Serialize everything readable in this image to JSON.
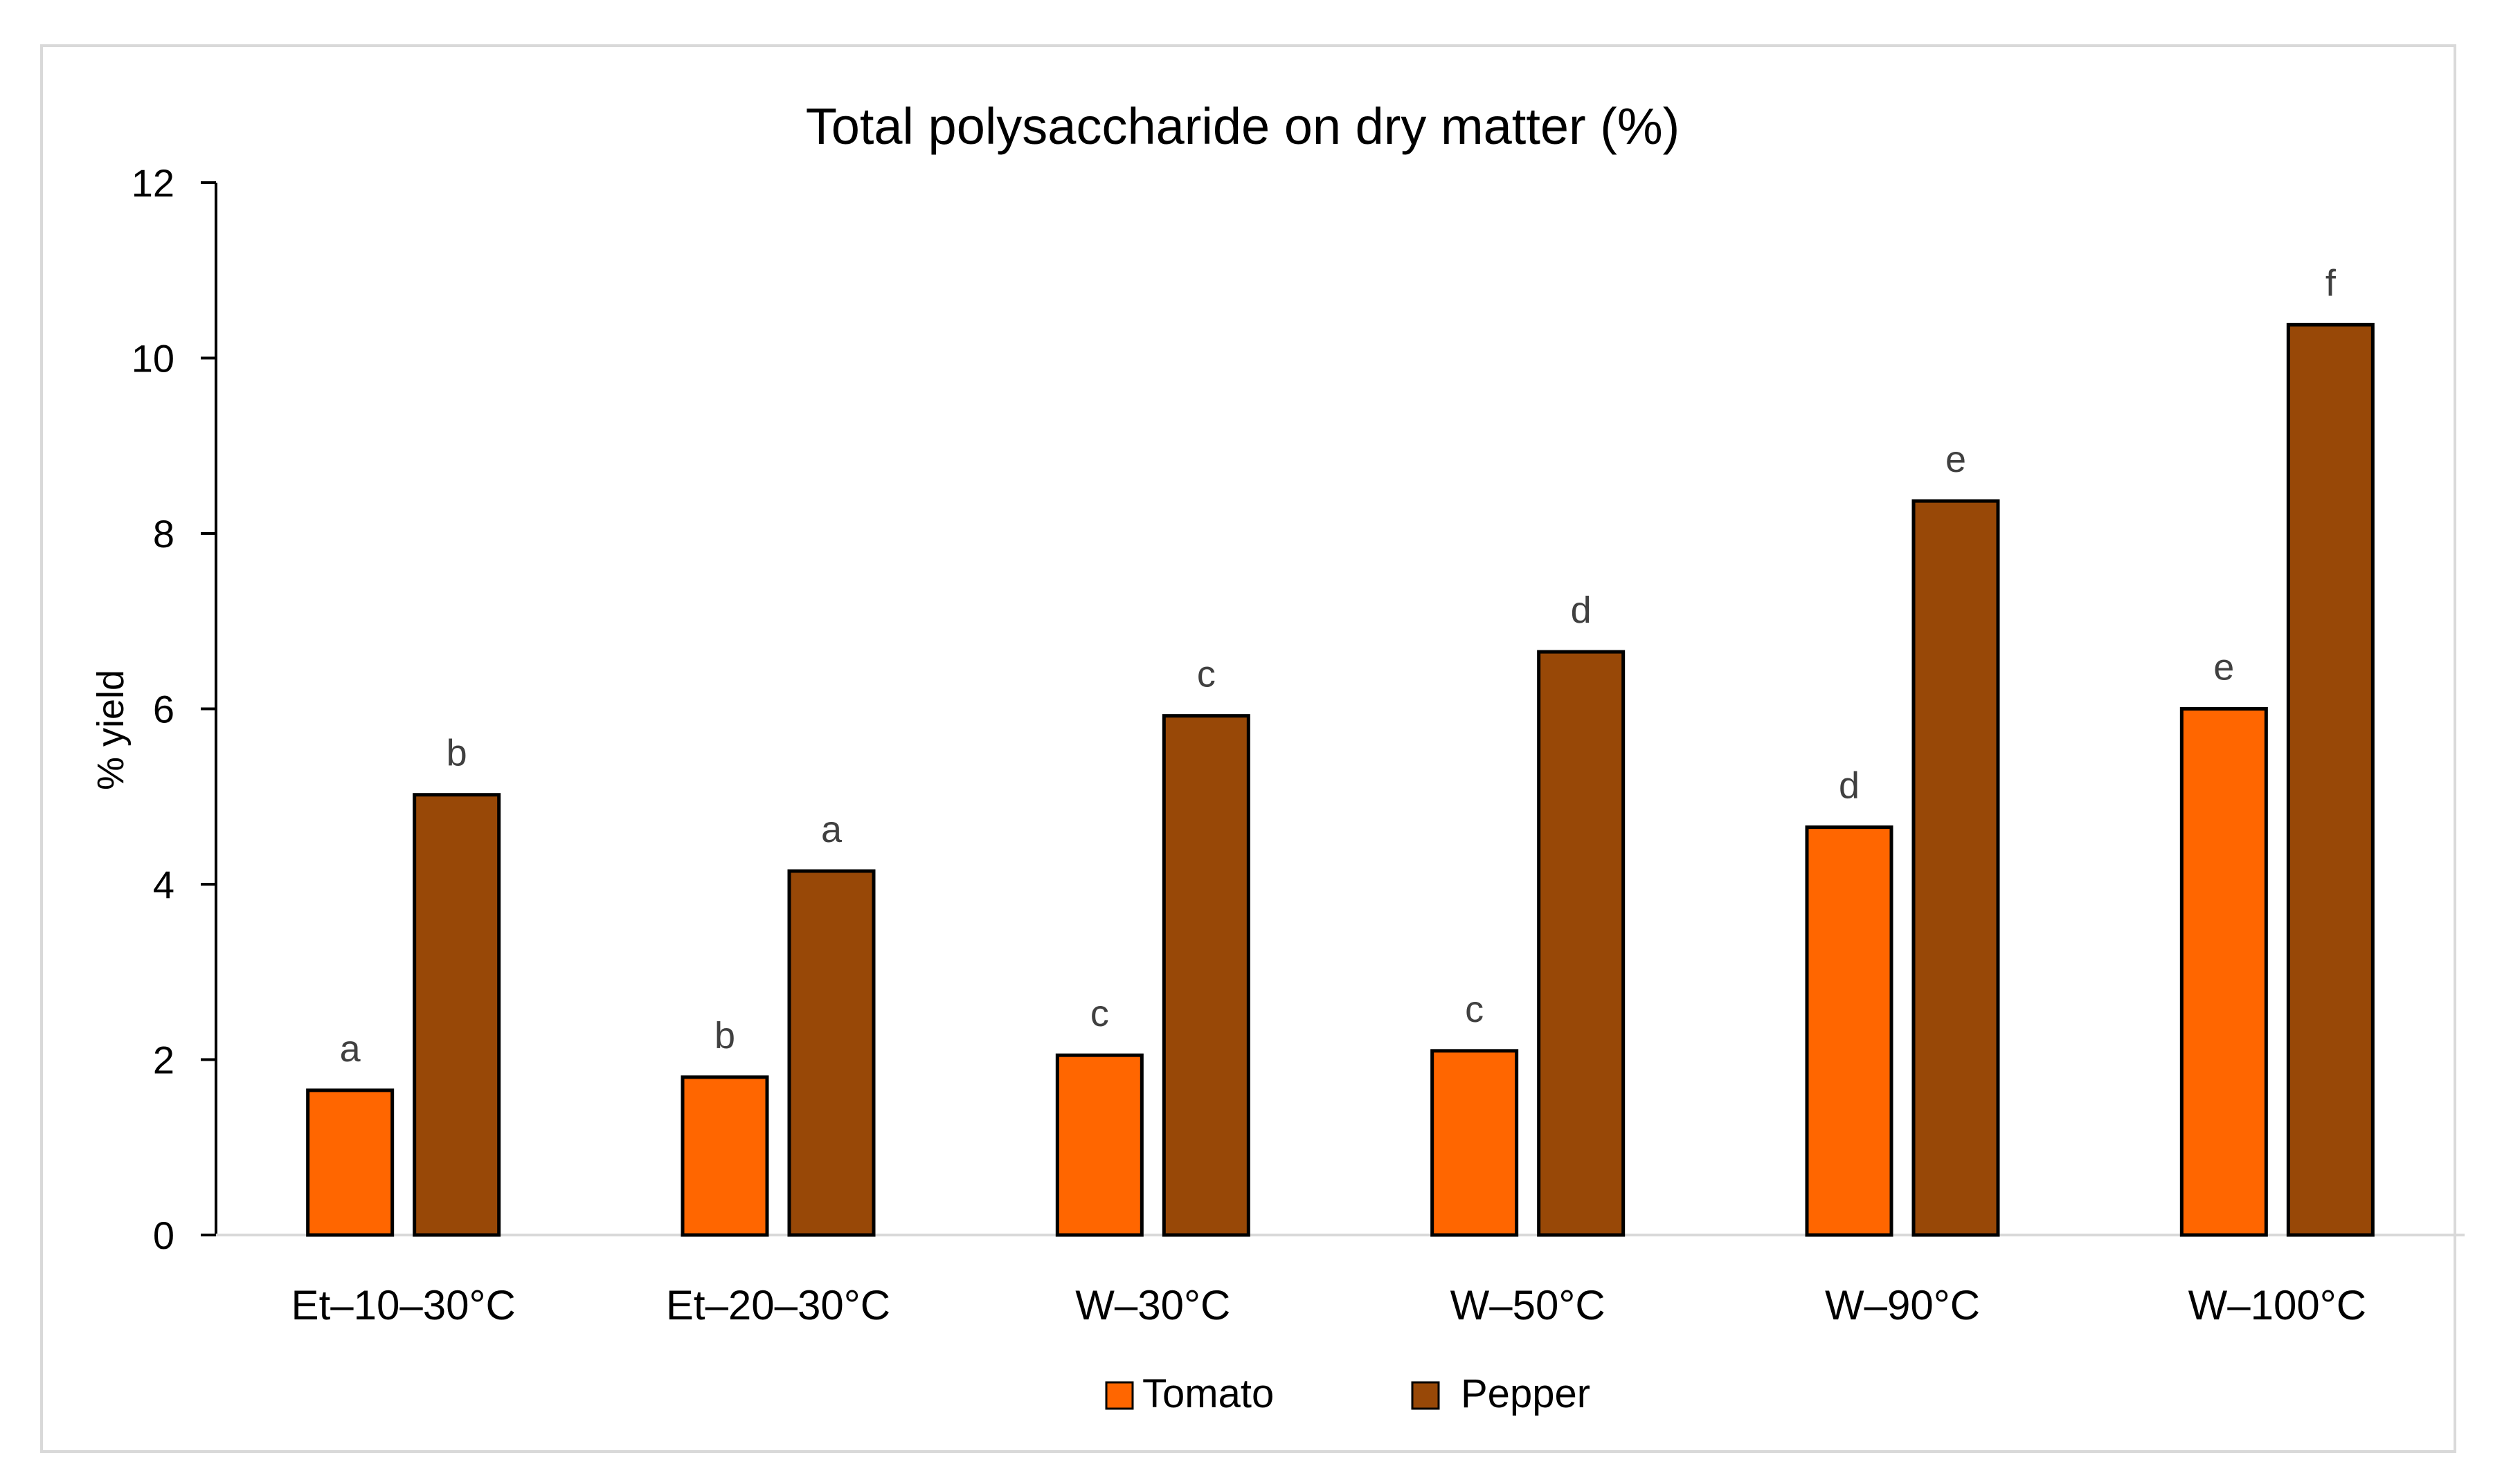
{
  "chart_data": {
    "type": "bar",
    "title": "Total polysaccharide on dry matter (%)",
    "xlabel": "",
    "ylabel": "% yield",
    "ylim": [
      0,
      12
    ],
    "yticks": [
      "0",
      "2",
      "4",
      "6",
      "8",
      "10",
      "12"
    ],
    "grid": false,
    "legend_position": "bottom",
    "categories": [
      "Et–10–30°C",
      "Et–20–30°C",
      "W–30°C",
      "W–50°C",
      "W–90°C",
      "W–100°C"
    ],
    "series": [
      {
        "name": "Tomato",
        "color": "#ff6600",
        "values": [
          1.65,
          1.8,
          2.05,
          2.1,
          4.65,
          6.0
        ],
        "labels": [
          "a",
          "b",
          "c",
          "c",
          "d",
          "e"
        ]
      },
      {
        "name": "Pepper",
        "color": "#984807",
        "values": [
          5.02,
          4.15,
          5.92,
          6.65,
          8.37,
          10.38
        ],
        "labels": [
          "b",
          "a",
          "c",
          "d",
          "e",
          "f"
        ]
      }
    ]
  }
}
